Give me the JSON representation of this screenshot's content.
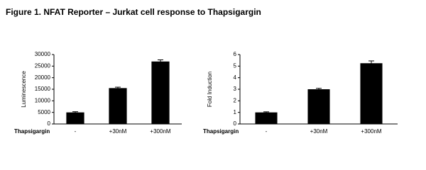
{
  "title": "Figure 1. NFAT Reporter – Jurkat cell response to Thapsigargin",
  "chart_data": [
    {
      "type": "bar",
      "ylabel": "Luminescence",
      "xlabel": "Thapsigargin",
      "categories": [
        "-",
        "+30nM",
        "+300nM"
      ],
      "values": [
        5000,
        15500,
        27000
      ],
      "errors": [
        300,
        400,
        700
      ],
      "color": "#000000",
      "ylim": [
        0,
        30000
      ],
      "yticks": [
        0,
        5000,
        10000,
        15000,
        20000,
        25000,
        30000
      ]
    },
    {
      "type": "bar",
      "ylabel": "Fold Induction",
      "xlabel": "Thapsigargin",
      "categories": [
        "-",
        "+30nM",
        "+300nM"
      ],
      "values": [
        1.0,
        3.0,
        5.25
      ],
      "errors": [
        0.05,
        0.08,
        0.2
      ],
      "color": "#000000",
      "ylim": [
        0,
        6
      ],
      "yticks": [
        0,
        1,
        2,
        3,
        4,
        5,
        6
      ]
    }
  ]
}
